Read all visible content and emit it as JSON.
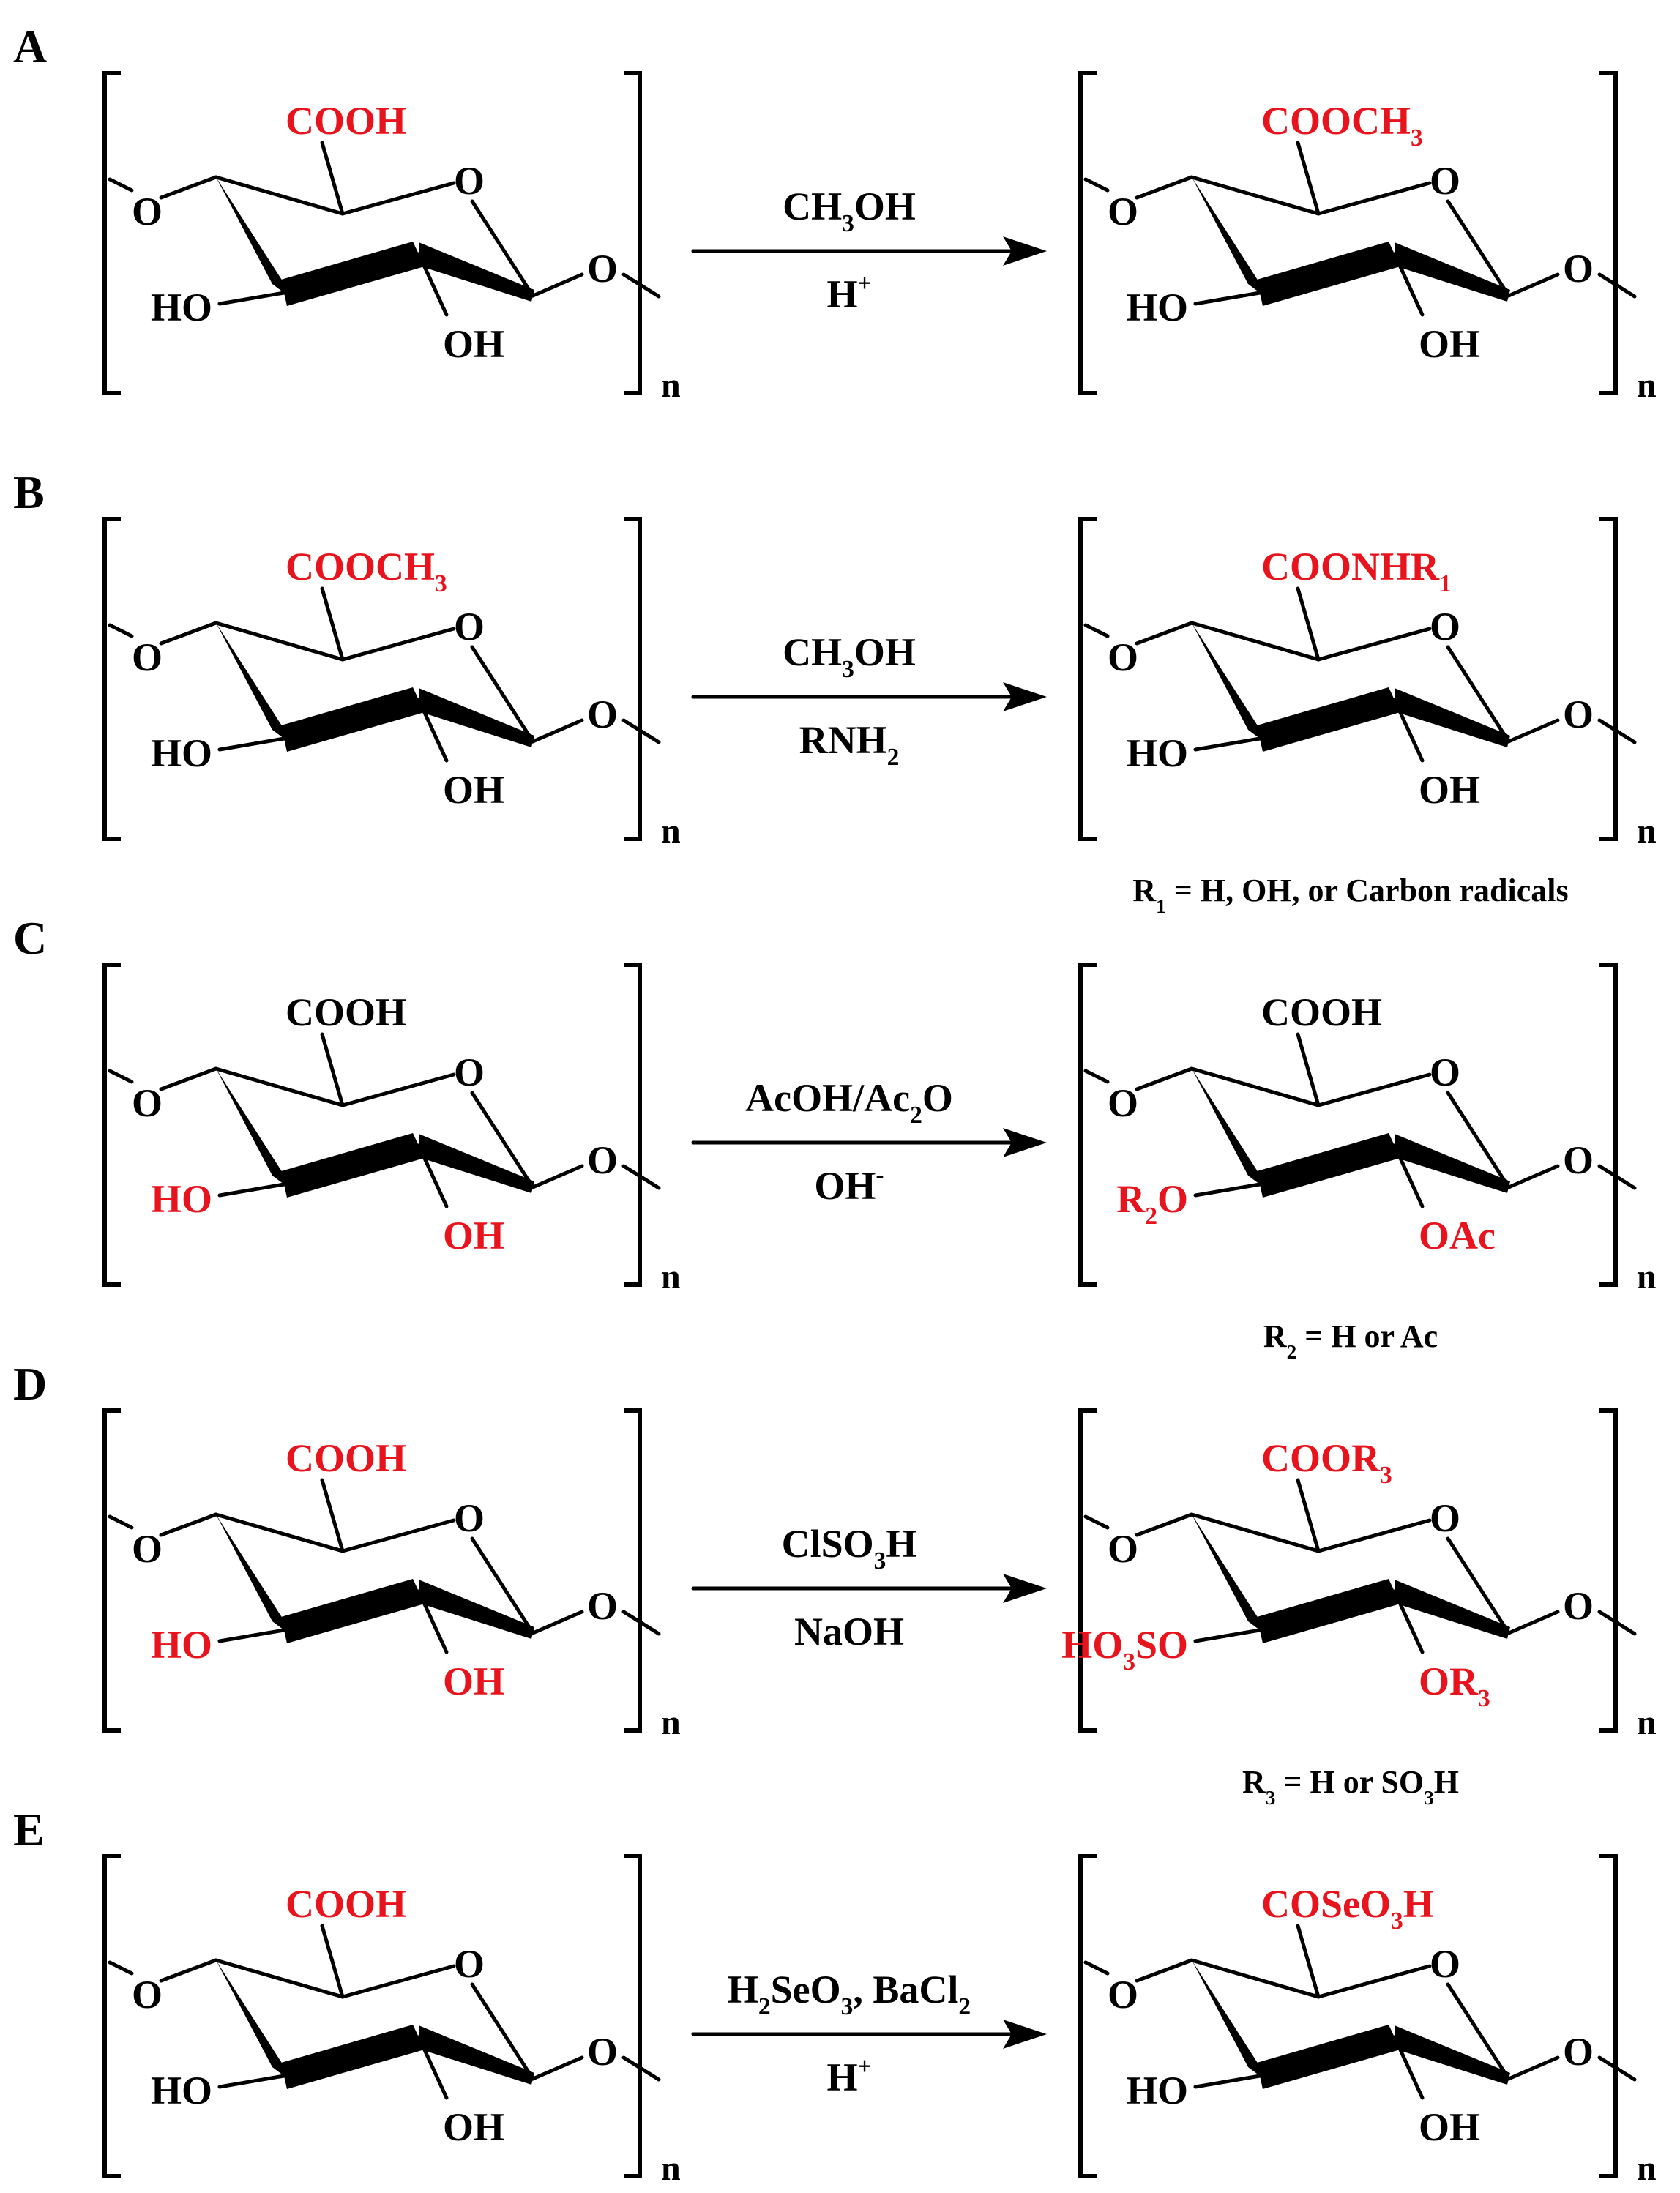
{
  "colors": {
    "highlight": "#e8141d",
    "normal": "#000000"
  },
  "panels": [
    {
      "letter": "A",
      "left": {
        "top": {
          "p1": "COOH"
        },
        "left": {
          "p1": "HO"
        },
        "bottom": {
          "p1": "OH"
        },
        "red": [
          "top"
        ]
      },
      "reagent_top": {
        "p1": "CH",
        "s1": "3",
        "p2": "OH"
      },
      "reagent_bottom": {
        "p1": "H",
        "sup": "+"
      },
      "right": {
        "top": {
          "p1": "COOCH",
          "s1": "3"
        },
        "left": {
          "p1": "HO"
        },
        "bottom": {
          "p1": "OH"
        },
        "red": [
          "top"
        ]
      },
      "note": null
    },
    {
      "letter": "B",
      "left": {
        "top": {
          "p1": "COOCH",
          "s1": "3"
        },
        "left": {
          "p1": "HO"
        },
        "bottom": {
          "p1": "OH"
        },
        "red": [
          "top"
        ]
      },
      "reagent_top": {
        "p1": "CH",
        "s1": "3",
        "p2": "OH"
      },
      "reagent_bottom": {
        "p1": "RNH",
        "s1": "2"
      },
      "right": {
        "top": {
          "p1": "COONHR",
          "s1": "1"
        },
        "left": {
          "p1": "HO"
        },
        "bottom": {
          "p1": "OH"
        },
        "red": [
          "top"
        ]
      },
      "note": {
        "p1": "R",
        "s1": "1",
        "p2": " = H, OH, or  Carbon radicals"
      }
    },
    {
      "letter": "C",
      "left": {
        "top": {
          "p1": "COOH"
        },
        "left": {
          "p1": "HO"
        },
        "bottom": {
          "p1": "OH"
        },
        "red": [
          "left",
          "bottom"
        ]
      },
      "reagent_top": {
        "p1": "AcOH/Ac",
        "s1": "2",
        "p2": "O"
      },
      "reagent_bottom": {
        "p1": "OH",
        "sup": "-"
      },
      "right": {
        "top": {
          "p1": "COOH"
        },
        "left": {
          "p1": "R",
          "s1": "2",
          "p2": "O"
        },
        "bottom": {
          "p1": "OAc"
        },
        "red": [
          "left",
          "bottom"
        ]
      },
      "note": {
        "p1": "R",
        "s1": "2",
        "p2": " = H or Ac"
      }
    },
    {
      "letter": "D",
      "left": {
        "top": {
          "p1": "COOH"
        },
        "left": {
          "p1": "HO"
        },
        "bottom": {
          "p1": "OH"
        },
        "red": [
          "top",
          "left",
          "bottom"
        ]
      },
      "reagent_top": {
        "p1": "ClSO",
        "s1": "3",
        "p2": "H"
      },
      "reagent_bottom": {
        "p1": "NaOH"
      },
      "right": {
        "top": {
          "p1": "COOR",
          "s1": "3"
        },
        "left": {
          "p1": "HO",
          "s1": "3",
          "p2": "SO"
        },
        "bottom": {
          "p1": "OR",
          "s1": "3"
        },
        "red": [
          "top",
          "left",
          "bottom"
        ]
      },
      "note": {
        "p1": "R",
        "s1": "3",
        "p2": " = H or SO",
        "s2": "3",
        "p3": "H"
      }
    },
    {
      "letter": "E",
      "left": {
        "top": {
          "p1": "COOH"
        },
        "left": {
          "p1": "HO"
        },
        "bottom": {
          "p1": "OH"
        },
        "red": [
          "top"
        ]
      },
      "reagent_top": {
        "p1": "H",
        "s1": "2",
        "p2": "SeO",
        "s2": "3",
        "p3": ", BaCl",
        "s3": "2"
      },
      "reagent_bottom": {
        "p1": "H",
        "sup": "+"
      },
      "right": {
        "top": {
          "p1": "COSeO",
          "s1": "3",
          "p2": "H"
        },
        "left": {
          "p1": "HO"
        },
        "bottom": {
          "p1": "OH"
        },
        "red": [
          "top"
        ]
      },
      "note": null
    }
  ],
  "ring": {
    "ring_oxygen": "O",
    "left_oxygen": "O",
    "right_oxygen": "O",
    "repeat_subscript": "n"
  }
}
